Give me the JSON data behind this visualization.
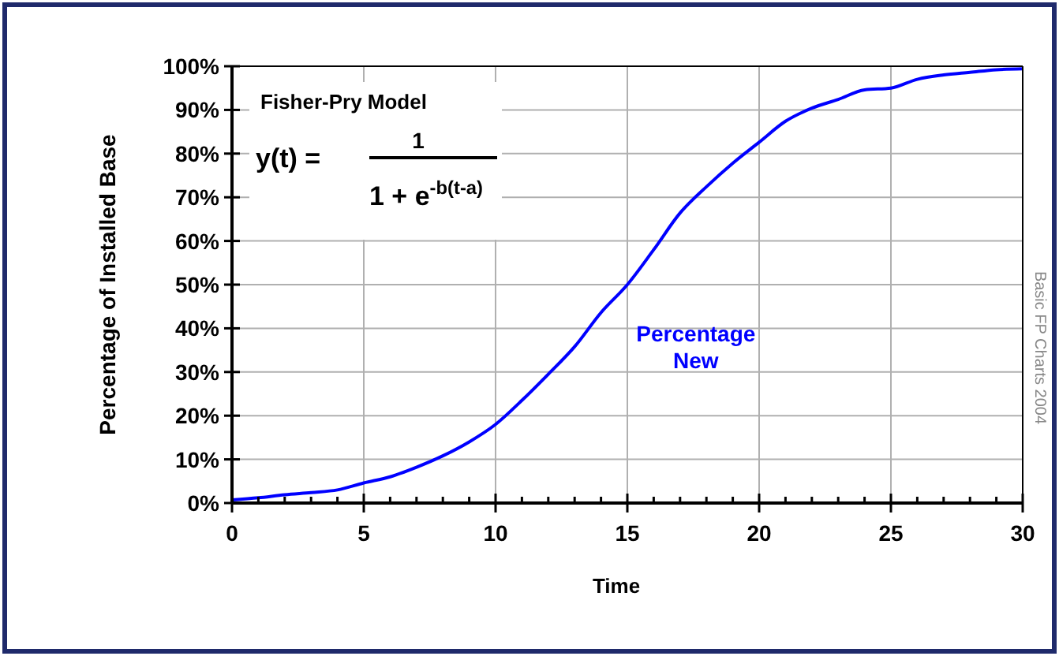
{
  "chart_data": {
    "type": "line",
    "xlabel": "Time",
    "ylabel": "Percentage of Installed Base",
    "annotations": [
      "Fisher-Pry Model",
      "y(t) =",
      "1",
      "1 + e$^{-b(t-a)}$",
      "Basic FP Charts 2004"
    ],
    "x": [
      0,
      1,
      2,
      3,
      4,
      5,
      6,
      7,
      8,
      9,
      10,
      11,
      12,
      13,
      14,
      15,
      16,
      17,
      18,
      19,
      20,
      21,
      22,
      23,
      24,
      25,
      26,
      27,
      28,
      29,
      30
    ],
    "series": [
      {
        "name": "Percentage New",
        "color": "#0000ff",
        "values": [
          0.7,
          1.2,
          1.9,
          2.4,
          3,
          4.6,
          6,
          8.2,
          10.8,
          14,
          18,
          23.5,
          29.5,
          35.8,
          43.6,
          50,
          58,
          66.4,
          72.4,
          77.8,
          82.6,
          87.4,
          90.4,
          92.4,
          94.6,
          95,
          97,
          98,
          98.6,
          99.2,
          99.4
        ]
      }
    ],
    "xlim": [
      0,
      30
    ],
    "ylim": [
      0,
      100
    ],
    "xticks": [
      0,
      {
        "value": 1,
        "label": null
      },
      {
        "value": 2,
        "label": null
      },
      {
        "value": 3,
        "label": null
      },
      {
        "value": 4,
        "label": null
      },
      5,
      {
        "value": 6,
        "label": null
      },
      {
        "value": 7,
        "label": null
      },
      {
        "value": 8,
        "label": null
      },
      {
        "value": 9,
        "label": null
      },
      10,
      {
        "value": 11,
        "label": null
      },
      {
        "value": 12,
        "label": null
      },
      {
        "value": 13,
        "label": null
      },
      {
        "value": 14,
        "label": null
      },
      15,
      {
        "value": 16,
        "label": null
      },
      {
        "value": 17,
        "label": null
      },
      {
        "value": 18,
        "label": null
      },
      {
        "value": 19,
        "label": null
      },
      20,
      {
        "value": 21,
        "label": null
      },
      {
        "value": 22,
        "label": null
      },
      {
        "value": 23,
        "label": null
      },
      {
        "value": 24,
        "label": null
      },
      25,
      {
        "value": 26,
        "label": null
      },
      {
        "value": 27,
        "label": null
      },
      {
        "value": 28,
        "label": null
      },
      {
        "value": 29,
        "label": null
      },
      30
    ],
    "yticks": [
      {
        "value": 0,
        "label": "0%"
      },
      {
        "value": 10,
        "label": "10%"
      },
      {
        "value": 20,
        "label": "20%"
      },
      {
        "value": 30,
        "label": "30%"
      },
      {
        "value": 40,
        "label": "40%"
      },
      {
        "value": 50,
        "label": "50%"
      },
      {
        "value": 60,
        "label": "60%"
      },
      {
        "value": 70,
        "label": "70%"
      },
      {
        "value": 80,
        "label": "80%"
      },
      {
        "value": 90,
        "label": "90%"
      },
      {
        "value": 100,
        "label": "100%"
      }
    ],
    "grid": true,
    "line_style": "solid",
    "marker": "none",
    "legend": false
  }
}
